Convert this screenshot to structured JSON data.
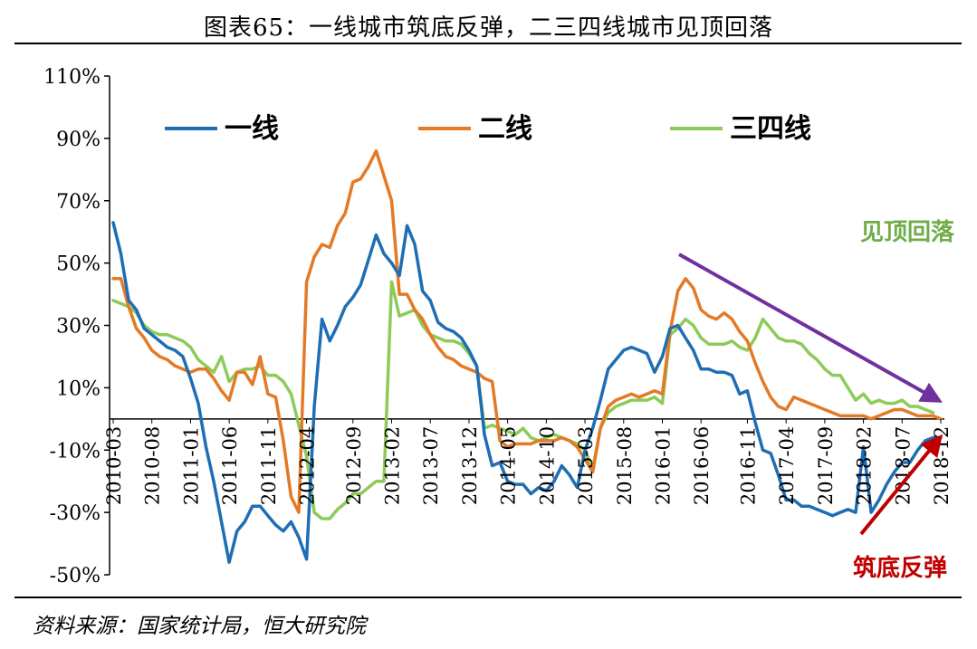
{
  "title": "图表65：一线城市筑底反弹，二三四线城市见顶回落",
  "source": "资料来源：国家统计局，恒大研究院",
  "colors": {
    "tier1": "#1F6EB4",
    "tier2": "#E47A26",
    "tier34": "#8CCB58",
    "purple_arrow": "#7030A0",
    "red_arrow": "#C00000",
    "annotation_green": "#70AD47",
    "annotation_red": "#C00000"
  },
  "annotations": {
    "peak": "见顶回落",
    "bottom": "筑底反弹"
  },
  "chart_data": {
    "type": "line",
    "ylim": [
      -50,
      110
    ],
    "yticks": [
      -50,
      -30,
      -10,
      10,
      30,
      50,
      70,
      90,
      110
    ],
    "ytick_labels": [
      "-50%",
      "-30%",
      "-10%",
      "10%",
      "30%",
      "50%",
      "70%",
      "90%",
      "110%"
    ],
    "xlabels": [
      "2010-03",
      "2010-08",
      "2011-01",
      "2011-06",
      "2011-11",
      "2012-04",
      "2012-09",
      "2013-02",
      "2013-07",
      "2013-12",
      "2014-05",
      "2014-10",
      "2015-03",
      "2015-08",
      "2016-01",
      "2016-06",
      "2016-11",
      "2017-04",
      "2017-09",
      "2018-02",
      "2018-07",
      "2018-12"
    ],
    "legend": "top",
    "series": [
      {
        "name": "一线",
        "values": [
          63,
          53,
          38,
          35,
          29,
          27,
          25,
          23,
          22,
          20,
          13,
          5,
          -9,
          -20,
          -33,
          -46,
          -36,
          -33,
          -28,
          -28,
          -31,
          -34,
          -36,
          -33,
          -38,
          -45,
          4,
          32,
          25,
          30,
          36,
          39,
          43,
          51,
          59,
          53,
          50,
          46,
          62,
          56,
          41,
          38,
          31,
          29,
          28,
          26,
          22,
          17,
          -5,
          -15,
          -14,
          -20,
          -21,
          -21,
          -24,
          -22,
          -23,
          -20,
          -15,
          -18,
          -22,
          -10,
          -3,
          6,
          16,
          19,
          22,
          23,
          22,
          21,
          15,
          20,
          29,
          30,
          26,
          22,
          16,
          16,
          15,
          15,
          14,
          8,
          9,
          -1,
          -10,
          -11,
          -18,
          -26,
          -26,
          -28,
          -28,
          -29,
          -30,
          -31,
          -30,
          -29,
          -30,
          -9,
          -30,
          -26,
          -21,
          -17,
          -14,
          -14,
          -10,
          -7,
          -6,
          -6
        ]
      },
      {
        "name": "二线",
        "values": [
          45,
          45,
          36,
          29,
          26,
          22,
          20,
          19,
          17,
          16,
          15,
          16,
          16,
          13,
          9,
          6,
          15,
          15,
          11,
          20,
          8,
          7,
          -7,
          -25,
          -30,
          44,
          52,
          56,
          55,
          62,
          66,
          76,
          77,
          81,
          86,
          78,
          70,
          40,
          40,
          35,
          32,
          27,
          23,
          20,
          19,
          17,
          16,
          15,
          13,
          12,
          -7,
          -9,
          -8,
          -8,
          -8,
          -7,
          -7,
          -7,
          -6,
          -7,
          -9,
          -13,
          -17,
          -3,
          4,
          6,
          7,
          8,
          7,
          8,
          9,
          8,
          28,
          41,
          45,
          42,
          35,
          33,
          32,
          34,
          32,
          28,
          25,
          18,
          12,
          7,
          4,
          3,
          7,
          6,
          5,
          4,
          3,
          2,
          1,
          1,
          1,
          1,
          0,
          1,
          2,
          3,
          3,
          2,
          1,
          1,
          1,
          0
        ]
      },
      {
        "name": "三四线",
        "values": [
          38,
          37,
          36,
          34,
          30,
          28,
          27,
          27,
          26,
          25,
          23,
          19,
          17,
          15,
          20,
          12,
          15,
          16,
          16,
          17,
          14,
          14,
          12,
          8,
          -2,
          -12,
          -30,
          -32,
          -32,
          -29,
          -27,
          -24,
          -24,
          -22,
          -20,
          -20,
          44,
          33,
          34,
          35,
          30,
          27,
          26,
          25,
          25,
          24,
          21,
          17,
          -3,
          -2,
          -3,
          -4,
          -5,
          -3,
          -6,
          -7,
          -6,
          -5,
          -6,
          -7,
          -8,
          -10,
          -16,
          -3,
          2,
          4,
          5,
          6,
          6,
          6,
          7,
          5,
          27,
          29,
          32,
          30,
          26,
          24,
          24,
          24,
          25,
          23,
          22,
          26,
          32,
          29,
          26,
          25,
          25,
          24,
          21,
          19,
          16,
          14,
          14,
          10,
          6,
          8,
          5,
          6,
          5,
          5,
          6,
          4,
          4,
          3,
          2
        ]
      }
    ]
  }
}
